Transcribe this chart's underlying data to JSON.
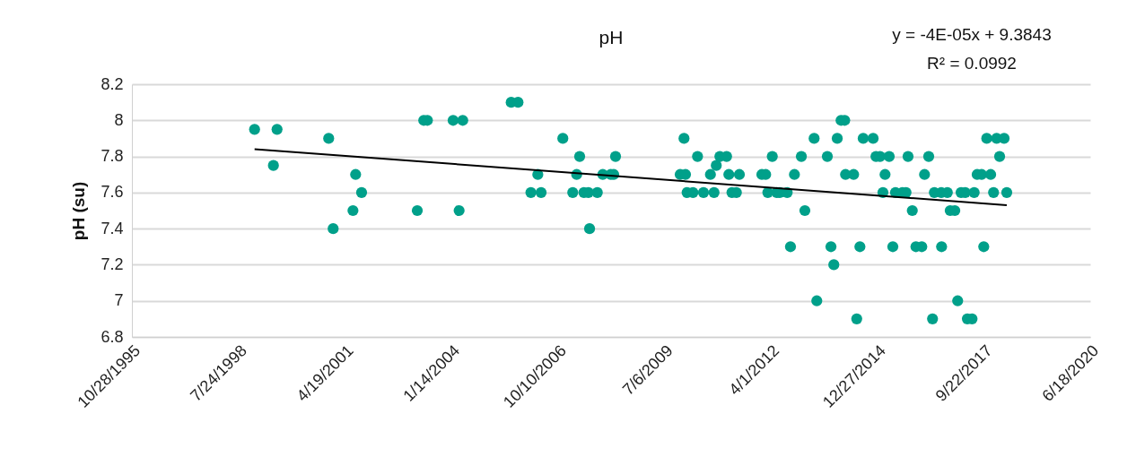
{
  "chart_data": {
    "type": "scatter",
    "title": "pH",
    "ylabel": "pH (su)",
    "annotations": [
      "y = -4E-05x + 9.3843",
      "R² = 0.0992"
    ],
    "xlim": [
      "1995-10-28",
      "2020-06-18"
    ],
    "ylim": [
      6.8,
      8.2
    ],
    "xticks": [
      {
        "value": "1995-10-28",
        "label": "10/28/1995"
      },
      {
        "value": "1998-07-24",
        "label": "7/24/1998"
      },
      {
        "value": "2001-04-19",
        "label": "4/19/2001"
      },
      {
        "value": "2004-01-14",
        "label": "1/14/2004"
      },
      {
        "value": "2006-10-10",
        "label": "10/10/2006"
      },
      {
        "value": "2009-07-06",
        "label": "7/6/2009"
      },
      {
        "value": "2012-04-01",
        "label": "4/1/2012"
      },
      {
        "value": "2014-12-27",
        "label": "12/27/2014"
      },
      {
        "value": "2017-09-22",
        "label": "9/22/2017"
      },
      {
        "value": "2020-06-18",
        "label": "6/18/2020"
      }
    ],
    "yticks": [
      6.8,
      7,
      7.2,
      7.4,
      7.6,
      7.8,
      8,
      8.2
    ],
    "grid": "y",
    "series": [
      {
        "color": "#00a08a",
        "marker": "circle",
        "x": [
          "1998-12-23",
          "1999-07-22",
          "1999-06-18",
          "2000-11-18",
          "2001-07-29",
          "2001-09-23",
          "2001-07-04",
          "2000-12-30",
          "2003-02-28",
          "2003-04-30",
          "2003-06-03",
          "2004-01-31",
          "2004-04-30",
          "2004-03-27",
          "2005-07-29",
          "2005-10-01",
          "2006-11-26",
          "2006-04-05",
          "2006-01-30",
          "2006-05-06",
          "2007-05-03",
          "2007-04-05",
          "2007-02-27",
          "2007-06-12",
          "2007-07-24",
          "2007-10-16",
          "2007-08-04",
          "2007-12-06",
          "2008-02-19",
          "2008-03-18",
          "2008-04-04",
          "2010-01-07",
          "2009-12-02",
          "2010-01-21",
          "2010-02-05",
          "2010-04-01",
          "2010-07-09",
          "2010-10-16",
          "2010-05-14",
          "2010-09-12",
          "2010-11-06",
          "2010-12-10",
          "2011-02-11",
          "2011-03-04",
          "2011-06-11",
          "2011-04-02",
          "2011-05-14",
          "2012-01-08",
          "2012-02-13",
          "2012-04-15",
          "2012-03-04",
          "2012-05-27",
          "2012-06-24",
          "2012-09-02",
          "2012-10-03",
          "2012-11-09",
          "2013-01-13",
          "2013-02-15",
          "2013-05-13",
          "2013-06-07",
          "2013-09-14",
          "2013-10-18",
          "2013-11-14",
          "2013-12-16",
          "2014-01-21",
          "2014-02-24",
          "2014-03-04",
          "2014-05-19",
          "2014-06-17",
          "2014-07-17",
          "2014-08-17",
          "2014-11-18",
          "2014-12-15",
          "2015-01-22",
          "2015-04-18",
          "2015-03-10",
          "2015-02-18",
          "2015-05-22",
          "2015-06-16",
          "2015-08-20",
          "2015-09-23",
          "2015-10-12",
          "2015-11-21",
          "2015-12-25",
          "2016-02-18",
          "2016-03-15",
          "2016-04-23",
          "2016-05-29",
          "2016-06-15",
          "2016-08-19",
          "2016-10-15",
          "2016-08-22",
          "2016-11-11",
          "2016-12-24",
          "2017-01-20",
          "2017-02-21",
          "2017-04-01",
          "2017-06-24",
          "2017-04-21",
          "2017-06-04",
          "2017-07-22",
          "2017-09-02",
          "2017-11-26",
          "2017-09-22",
          "2017-10-20",
          "2017-12-23",
          "2018-01-21",
          "2018-04-01",
          "2018-02-18",
          "2018-04-26"
        ],
        "values": [
          7.95,
          7.95,
          7.75,
          7.9,
          7.7,
          7.6,
          7.5,
          7.4,
          7.5,
          8,
          8,
          8,
          8,
          7.5,
          8.1,
          8.1,
          7.9,
          7.7,
          7.6,
          7.6,
          7.8,
          7.7,
          7.6,
          7.6,
          7.6,
          7.6,
          7.4,
          7.7,
          7.7,
          7.7,
          7.8,
          7.9,
          7.7,
          7.7,
          7.6,
          7.6,
          7.6,
          7.6,
          7.8,
          7.7,
          7.75,
          7.8,
          7.8,
          7.7,
          7.7,
          7.6,
          7.6,
          7.7,
          7.7,
          7.8,
          7.6,
          7.6,
          7.6,
          7.6,
          7.3,
          7.7,
          7.8,
          7.5,
          7.9,
          7,
          7.8,
          7.3,
          7.2,
          7.9,
          8,
          8,
          7.7,
          7.7,
          6.9,
          7.3,
          7.9,
          7.9,
          7.8,
          7.8,
          7.8,
          7.7,
          7.6,
          7.3,
          7.6,
          7.6,
          7.6,
          7.8,
          7.5,
          7.3,
          7.3,
          7.7,
          7.8,
          6.9,
          7.6,
          7.6,
          7.6,
          7.3,
          7.5,
          7.5,
          7,
          7.6,
          7.6,
          7.6,
          6.9,
          6.9,
          7.7,
          7.7,
          7.7,
          7.3,
          7.9,
          7.6,
          7.9,
          7.9,
          7.8,
          7.6
        ]
      },
      {
        "type": "line",
        "color": "#000000",
        "x": [
          "1998-12-23",
          "2018-04-26"
        ],
        "values": [
          7.84,
          7.53
        ]
      }
    ]
  }
}
